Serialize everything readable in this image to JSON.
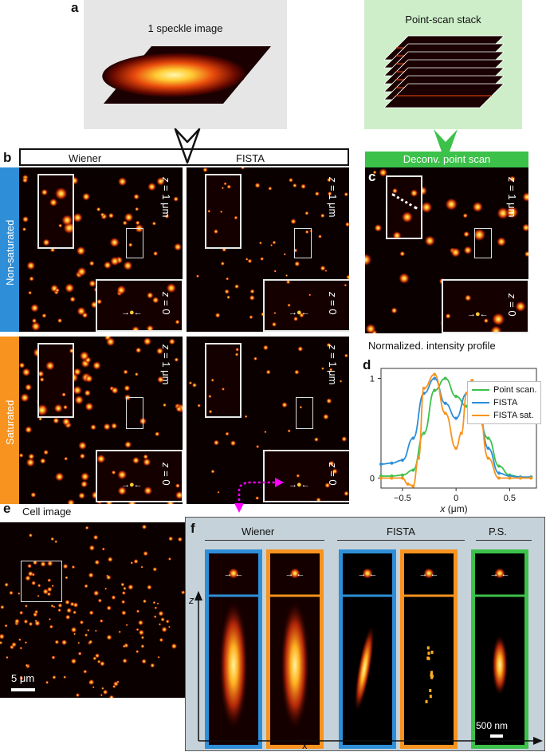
{
  "panels": {
    "a": {
      "letter": "a",
      "speckle_label": "1 speckle image",
      "stack_label": "Point-scan stack"
    },
    "b": {
      "letter": "b",
      "col_wiener": "Wiener",
      "col_fista": "FISTA",
      "row_nonsat": "Non-saturated",
      "row_sat": "Saturated"
    },
    "c": {
      "letter": "c",
      "header": "Deconv. point scan"
    },
    "d": {
      "letter": "d",
      "title": "Normalized. intensity profile",
      "xlabel_var": "x",
      "xlabel_unit": " (μm)"
    },
    "e": {
      "letter": "e",
      "title": "Cell image",
      "scalebar": "5 μm"
    },
    "f": {
      "letter": "f",
      "wiener": "Wiener",
      "fista": "FISTA",
      "ps": "P.S.",
      "scalebar": "500 nm",
      "axis_z": "z",
      "axis_x": "x"
    }
  },
  "z_labels": {
    "z1_var": "z",
    "z1_rest": " = 1 μm",
    "z0_var": "z",
    "z0_rest": " = 0"
  },
  "colors": {
    "blue": "#2e8fd8",
    "orange": "#f7931e",
    "green": "#3cc14a",
    "lightgray": "#e6e6e6",
    "lightgreen": "#cdeec9",
    "panelf_bg": "#c5d2d9"
  },
  "chart_data": {
    "type": "line",
    "title": "Normalized. intensity profile",
    "xlabel": "x (μm)",
    "xlim": [
      -0.7,
      0.75
    ],
    "ylim": [
      -0.1,
      1.1
    ],
    "xticks": [
      -0.5,
      0,
      0.5
    ],
    "xtick_labels": [
      "−0.5",
      "0",
      "0.5"
    ],
    "yticks": [
      0,
      1
    ],
    "ytick_labels": [
      "0",
      "1"
    ],
    "legend_position": "top-right",
    "series": [
      {
        "name": "Point scan.",
        "color": "#3cc14a",
        "x": [
          -0.7,
          -0.6,
          -0.5,
          -0.4,
          -0.3,
          -0.2,
          -0.1,
          0.0,
          0.1,
          0.2,
          0.3,
          0.4,
          0.5,
          0.6,
          0.7
        ],
        "y": [
          0.02,
          0.02,
          0.03,
          0.08,
          0.45,
          0.88,
          1.0,
          0.82,
          0.72,
          0.62,
          0.4,
          0.12,
          0.03,
          0.01,
          0.01
        ]
      },
      {
        "name": "FISTA",
        "color": "#2e8fd8",
        "x": [
          -0.7,
          -0.6,
          -0.5,
          -0.4,
          -0.3,
          -0.2,
          -0.1,
          0.0,
          0.1,
          0.2,
          0.3,
          0.4,
          0.5,
          0.6,
          0.7
        ],
        "y": [
          0.14,
          0.15,
          0.18,
          0.4,
          0.85,
          1.0,
          0.75,
          0.6,
          0.85,
          0.78,
          0.3,
          0.05,
          0.02,
          0.01,
          0.01
        ]
      },
      {
        "name": "FISTA sat.",
        "color": "#f7931e",
        "x": [
          -0.7,
          -0.6,
          -0.5,
          -0.45,
          -0.4,
          -0.35,
          -0.3,
          -0.2,
          -0.1,
          0.0,
          0.05,
          0.1,
          0.15,
          0.2,
          0.3,
          0.4,
          0.5,
          0.6,
          0.7
        ],
        "y": [
          0.0,
          0.0,
          0.0,
          -0.06,
          -0.08,
          0.2,
          0.9,
          1.04,
          0.65,
          0.3,
          0.45,
          0.85,
          0.98,
          0.85,
          0.2,
          0.0,
          0.0,
          0.0,
          0.0
        ]
      }
    ]
  }
}
